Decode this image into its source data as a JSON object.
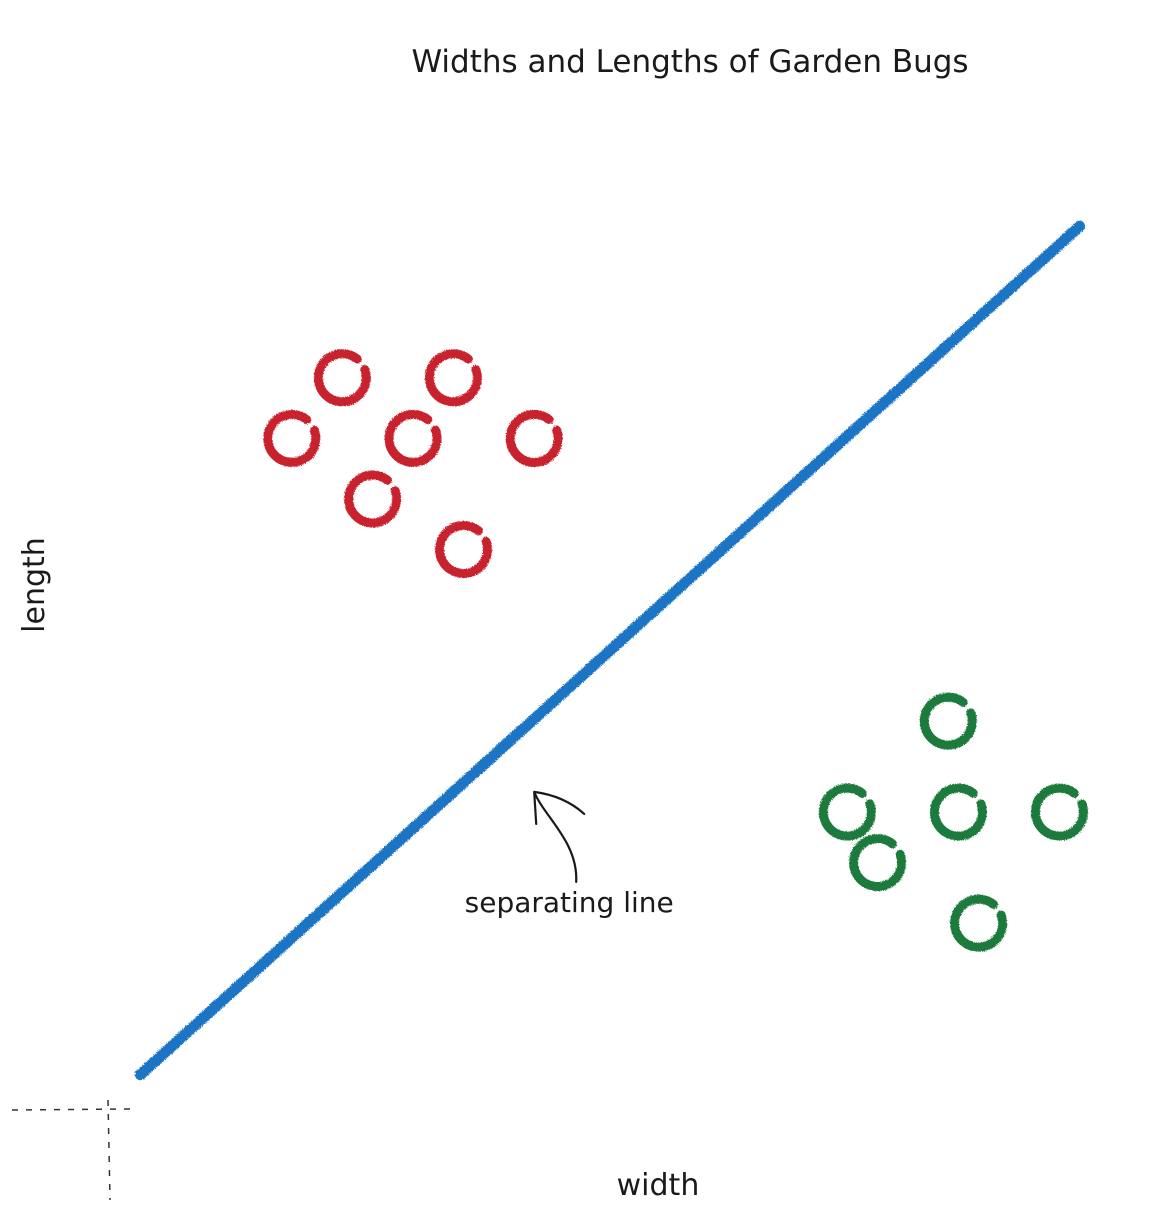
{
  "chart_data": {
    "type": "scatter",
    "title": "Widths and Lengths of Garden Bugs",
    "xlabel": "width",
    "ylabel": "length",
    "xlim": [
      0,
      100
    ],
    "ylim": [
      0,
      100
    ],
    "grid": false,
    "legend": "none",
    "series": [
      {
        "color": "#c8222e",
        "points": [
          [
            23,
            72
          ],
          [
            34,
            72
          ],
          [
            30,
            66
          ],
          [
            18,
            66
          ],
          [
            42,
            66
          ],
          [
            26,
            60
          ],
          [
            35,
            55
          ]
        ]
      },
      {
        "color": "#1b7a3c",
        "points": [
          [
            83,
            38
          ],
          [
            73,
            29
          ],
          [
            84,
            29
          ],
          [
            94,
            29
          ],
          [
            76,
            24
          ],
          [
            86,
            18
          ]
        ]
      }
    ],
    "line": {
      "color": "#1f74c4",
      "from": [
        3,
        3
      ],
      "to": [
        96,
        87
      ]
    },
    "annotations": [
      {
        "text": "separating line",
        "arrow_target": [
          42,
          31
        ]
      }
    ]
  }
}
